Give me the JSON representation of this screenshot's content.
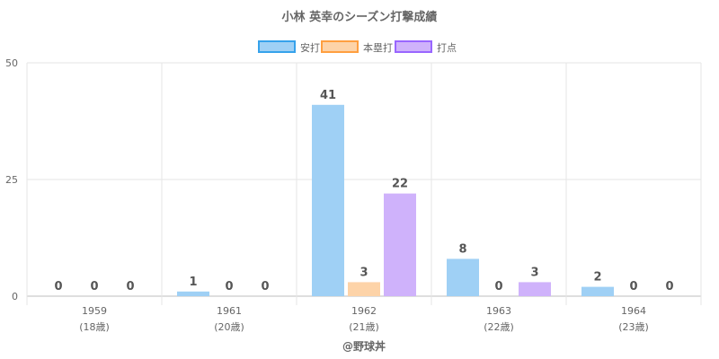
{
  "chart_data": {
    "type": "bar",
    "title": "小林 英幸のシーズン打撃成績",
    "categories": [
      {
        "year": "1959",
        "age": "(18歳)"
      },
      {
        "year": "1961",
        "age": "(20歳)"
      },
      {
        "year": "1962",
        "age": "(21歳)"
      },
      {
        "year": "1963",
        "age": "(22歳)"
      },
      {
        "year": "1964",
        "age": "(23歳)"
      }
    ],
    "series": [
      {
        "name": "安打",
        "values": [
          0,
          1,
          41,
          8,
          2
        ],
        "fill": "#9fd0f5",
        "border": "#36a2eb"
      },
      {
        "name": "本塁打",
        "values": [
          0,
          0,
          3,
          0,
          0
        ],
        "fill": "#fdd3a8",
        "border": "#ff9f40"
      },
      {
        "name": "打点",
        "values": [
          0,
          0,
          22,
          3,
          0
        ],
        "fill": "#cfb2fb",
        "border": "#9966ff"
      }
    ],
    "y_ticks": [
      "0",
      "25",
      "50"
    ],
    "y_tick_values": [
      0,
      25,
      50
    ],
    "ylim": [
      0,
      50
    ],
    "grid": true,
    "legend_position": "top",
    "credit": "@野球丼"
  }
}
